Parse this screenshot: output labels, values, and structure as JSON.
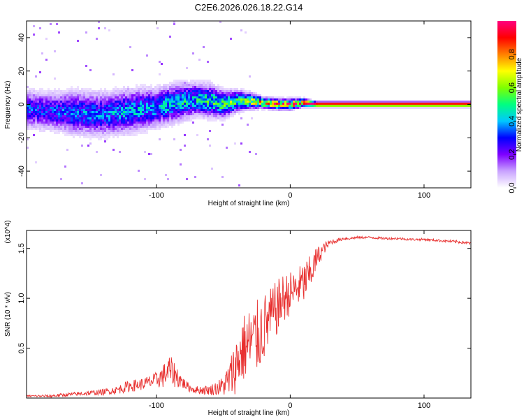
{
  "title": "C2E6.2026.026.18.22.G14",
  "chart_data": [
    {
      "type": "heatmap",
      "name": "spectrogram",
      "xlabel": "Height of straight line (km)",
      "ylabel": "Frequency (Hz)",
      "xlim": [
        -197,
        135
      ],
      "ylim": [
        -50,
        50
      ],
      "xticks": [
        -100,
        0,
        100
      ],
      "xtick_labels": [
        "-100",
        "0",
        "100"
      ],
      "yticks": [
        -40,
        -20,
        0,
        20,
        40
      ],
      "ytick_labels": [
        "-40",
        "-20",
        "0",
        "20",
        "40"
      ],
      "colorbar": {
        "label": "Normalized spectral amplitude",
        "range": [
          0,
          1
        ],
        "ticks": [
          0.0,
          0.2,
          0.4,
          0.6,
          0.8
        ],
        "tick_labels": [
          "0.0",
          "0.2",
          "0.4",
          "0.6",
          "0.8"
        ],
        "colors": [
          "#ffffff",
          "#c9a3ff",
          "#7e00ff",
          "#0000ff",
          "#00c8ff",
          "#00ff80",
          "#7fff00",
          "#ffff00",
          "#ff8000",
          "#ff0000",
          "#ff0080"
        ]
      },
      "ridge": {
        "x": [
          -195,
          -180,
          -160,
          -140,
          -120,
          -100,
          -85,
          -70,
          -60,
          -50,
          -40,
          -30,
          -20,
          -10,
          0,
          10,
          20,
          135
        ],
        "freq": [
          -3,
          -4,
          -5,
          -6,
          -4,
          -2,
          1,
          3,
          2,
          0,
          2,
          2,
          1,
          0,
          0,
          1,
          0,
          0
        ],
        "spread": [
          7,
          7,
          8,
          8,
          8,
          7,
          7,
          6,
          6,
          5,
          4,
          3,
          2,
          2,
          2,
          1.5,
          1,
          1
        ],
        "peak_amplitude": [
          0.35,
          0.35,
          0.4,
          0.4,
          0.45,
          0.45,
          0.5,
          0.5,
          0.55,
          0.6,
          0.6,
          0.7,
          0.85,
          0.95,
          0.95,
          1.0,
          1.0,
          1.0
        ]
      }
    },
    {
      "type": "line",
      "name": "snr",
      "xlabel": "Height of straight line (km)",
      "ylabel": "SNR (10 * v/v)",
      "y_multiplier": "(x10^4)",
      "xlim": [
        -197,
        135
      ],
      "ylim": [
        0,
        1.68
      ],
      "xticks": [
        -100,
        0,
        100
      ],
      "xtick_labels": [
        "-100",
        "0",
        "100"
      ],
      "yticks": [
        0.5,
        1.0,
        1.5
      ],
      "ytick_labels": [
        "0.5",
        "1.0",
        "1.5"
      ],
      "series": [
        {
          "name": "SNR",
          "color": "#e8302f",
          "x": [
            -197,
            -180,
            -160,
            -140,
            -130,
            -120,
            -110,
            -100,
            -95,
            -90,
            -85,
            -80,
            -75,
            -70,
            -60,
            -50,
            -45,
            -40,
            -35,
            -30,
            -25,
            -20,
            -15,
            -10,
            -5,
            0,
            5,
            10,
            15,
            20,
            25,
            30,
            35,
            40,
            45,
            50,
            60,
            70,
            80,
            90,
            100,
            110,
            120,
            130,
            135
          ],
          "y": [
            0.02,
            0.02,
            0.04,
            0.06,
            0.08,
            0.12,
            0.14,
            0.18,
            0.22,
            0.28,
            0.22,
            0.15,
            0.1,
            0.08,
            0.08,
            0.12,
            0.2,
            0.35,
            0.5,
            0.55,
            0.6,
            0.7,
            0.8,
            0.9,
            1.0,
            1.05,
            1.1,
            1.15,
            1.25,
            1.4,
            1.5,
            1.56,
            1.58,
            1.6,
            1.6,
            1.61,
            1.61,
            1.6,
            1.6,
            1.59,
            1.59,
            1.58,
            1.57,
            1.56,
            1.55
          ],
          "noise": [
            0.01,
            0.015,
            0.02,
            0.03,
            0.04,
            0.06,
            0.06,
            0.08,
            0.12,
            0.15,
            0.12,
            0.06,
            0.04,
            0.04,
            0.05,
            0.1,
            0.2,
            0.3,
            0.35,
            0.38,
            0.38,
            0.35,
            0.3,
            0.28,
            0.25,
            0.22,
            0.2,
            0.22,
            0.18,
            0.12,
            0.06,
            0.03,
            0.02,
            0.015,
            0.015,
            0.012,
            0.012,
            0.012,
            0.012,
            0.012,
            0.012,
            0.012,
            0.015,
            0.015,
            0.015
          ]
        }
      ]
    }
  ]
}
